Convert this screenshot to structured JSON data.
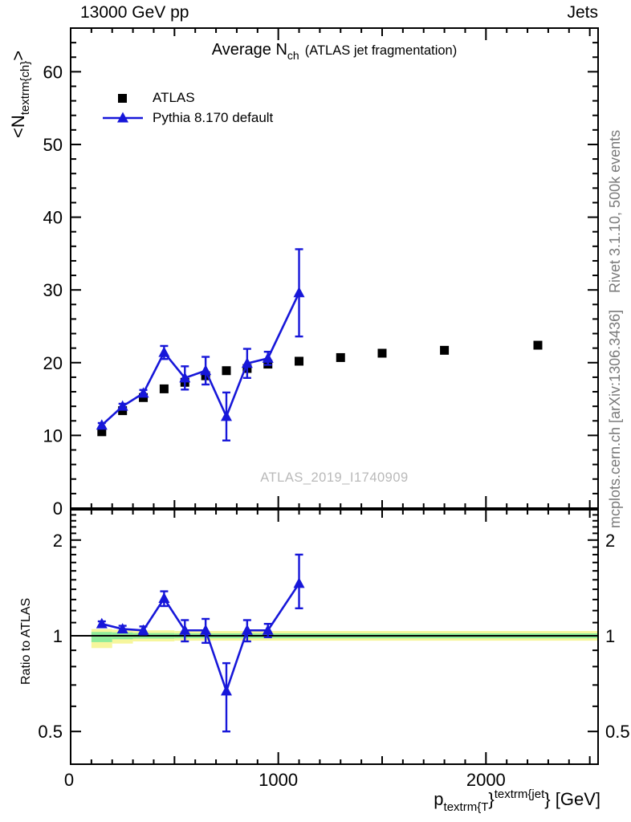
{
  "header": {
    "left": "13000 GeV pp",
    "right": "Jets"
  },
  "plot_title": {
    "main": "Average N",
    "sub": "ch",
    "paren": "(ATLAS jet fragmentation)"
  },
  "legend": {
    "items": [
      {
        "label": "ATLAS",
        "marker": "black-filled-square"
      },
      {
        "label": "Pythia 8.170 default",
        "marker": "blue-line-with-triangle"
      }
    ]
  },
  "axis_titles": {
    "y_pre": "<N",
    "y_sub": "textrm{ch}",
    "y_post": ">",
    "ratio": "Ratio to ATLAS",
    "x_p": "p",
    "x_sub": "textrm{T",
    "x_mid": "}",
    "x_sup": "textrm{jet",
    "x_end": "} [GeV]"
  },
  "watermark": "ATLAS_2019_I1740909",
  "side_notes": {
    "rivet": "Rivet 3.1.10,  500k events",
    "mcplots": "mcplots.cern.ch [arXiv:1306.3436]"
  },
  "colors": {
    "mc": "#1717d9",
    "data": "#000000",
    "band_yellow": "#f6f69c",
    "band_green": "#8fec9a",
    "watermark": "#b9b9b9",
    "side_note": "#7a7a7a",
    "axis": "#000000"
  },
  "chart_data": [
    {
      "type": "scatter",
      "panel": "main",
      "title": "Average N_ch (ATLAS jet fragmentation)",
      "xlabel": "p_T^{jet} [GeV]",
      "ylabel": "<N_ch>",
      "xlim": [
        0,
        2540
      ],
      "ylim": [
        0,
        66
      ],
      "x_ticks": [
        0,
        1000,
        2000
      ],
      "x_minor_step": 100,
      "y_ticks": [
        0,
        10,
        20,
        30,
        40,
        50,
        60
      ],
      "y_minor_step": 2,
      "grid": false,
      "legend_position": "top-left",
      "series": [
        {
          "name": "ATLAS",
          "marker": "square",
          "color": "#000000",
          "x": [
            150,
            250,
            350,
            450,
            550,
            650,
            750,
            850,
            950,
            1100,
            1300,
            1500,
            1800,
            2250
          ],
          "y": [
            10.5,
            13.4,
            15.2,
            16.4,
            17.3,
            18.2,
            18.9,
            19.2,
            19.8,
            20.2,
            20.7,
            21.3,
            21.7,
            22.4
          ]
        },
        {
          "name": "Pythia 8.170 default",
          "marker": "triangle-up",
          "color": "#1717d9",
          "x": [
            150,
            250,
            350,
            450,
            550,
            650,
            750,
            850,
            950,
            1100
          ],
          "y": [
            11.4,
            14.0,
            15.8,
            21.4,
            17.9,
            18.9,
            12.6,
            19.9,
            20.6,
            29.6
          ],
          "yerr": [
            0.3,
            0.35,
            0.45,
            0.9,
            1.6,
            1.9,
            3.3,
            2.0,
            0.9,
            6.0
          ]
        }
      ]
    },
    {
      "type": "line",
      "panel": "ratio",
      "ylabel": "Ratio to ATLAS",
      "yscale": "log",
      "xlim": [
        0,
        2540
      ],
      "ylim": [
        0.39,
        2.49
      ],
      "y_ticks": [
        0.5,
        1,
        2
      ],
      "y_minor_ticks": [
        0.6,
        0.7,
        0.8,
        0.9,
        1.1,
        1.2,
        1.3,
        1.4,
        1.5,
        1.6,
        1.7,
        1.8,
        1.9,
        2.1,
        2.2,
        2.3,
        2.4
      ],
      "reference_line": 1,
      "series": [
        {
          "name": "Pythia 8.170 default / ATLAS",
          "x": [
            150,
            250,
            350,
            450,
            550,
            650,
            750,
            850,
            950,
            1100
          ],
          "y": [
            1.09,
            1.05,
            1.04,
            1.31,
            1.04,
            1.04,
            0.67,
            1.04,
            1.04,
            1.46
          ],
          "yerr_lo": [
            0.02,
            0.025,
            0.03,
            0.07,
            0.08,
            0.09,
            0.17,
            0.08,
            0.05,
            0.24
          ],
          "yerr_hi": [
            0.02,
            0.025,
            0.03,
            0.07,
            0.08,
            0.09,
            0.15,
            0.08,
            0.05,
            0.34
          ]
        }
      ],
      "bands": [
        {
          "x0": 100,
          "x1": 200,
          "yellow": [
            0.915,
            1.05
          ],
          "green": [
            0.955,
            1.028
          ]
        },
        {
          "x0": 200,
          "x1": 300,
          "yellow": [
            0.945,
            1.045
          ],
          "green": [
            0.975,
            1.025
          ]
        },
        {
          "x0": 300,
          "x1": 500,
          "yellow": [
            0.96,
            1.04
          ],
          "green": [
            0.98,
            1.02
          ]
        },
        {
          "x0": 500,
          "x1": 2540,
          "yellow": [
            0.965,
            1.035
          ],
          "green": [
            0.982,
            1.018
          ]
        }
      ]
    }
  ]
}
